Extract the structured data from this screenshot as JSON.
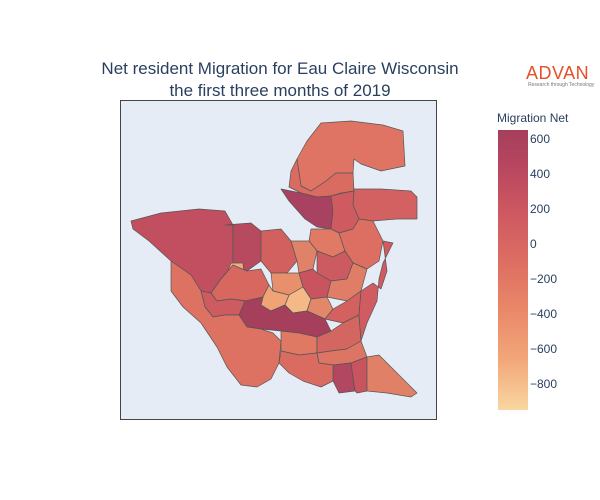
{
  "title": {
    "line1": "Net resident Migration for Eau Claire Wisconsin",
    "line2": "the first three months of 2019"
  },
  "logo": {
    "name": "ADVAN",
    "tagline": "Research through Technology"
  },
  "colorbar": {
    "title": "Migration Net",
    "ticks": [
      "600",
      "400",
      "200",
      "0",
      "−200",
      "−400",
      "−600",
      "−800"
    ],
    "range": [
      -950,
      650
    ],
    "colorscale": [
      "#f9d6a1",
      "#f2a779",
      "#e88467",
      "#dc6b62",
      "#cc5761",
      "#b6455f",
      "#a53f5c"
    ]
  },
  "map": {
    "background": "#e5ecf6",
    "border_color": "#444444"
  }
}
